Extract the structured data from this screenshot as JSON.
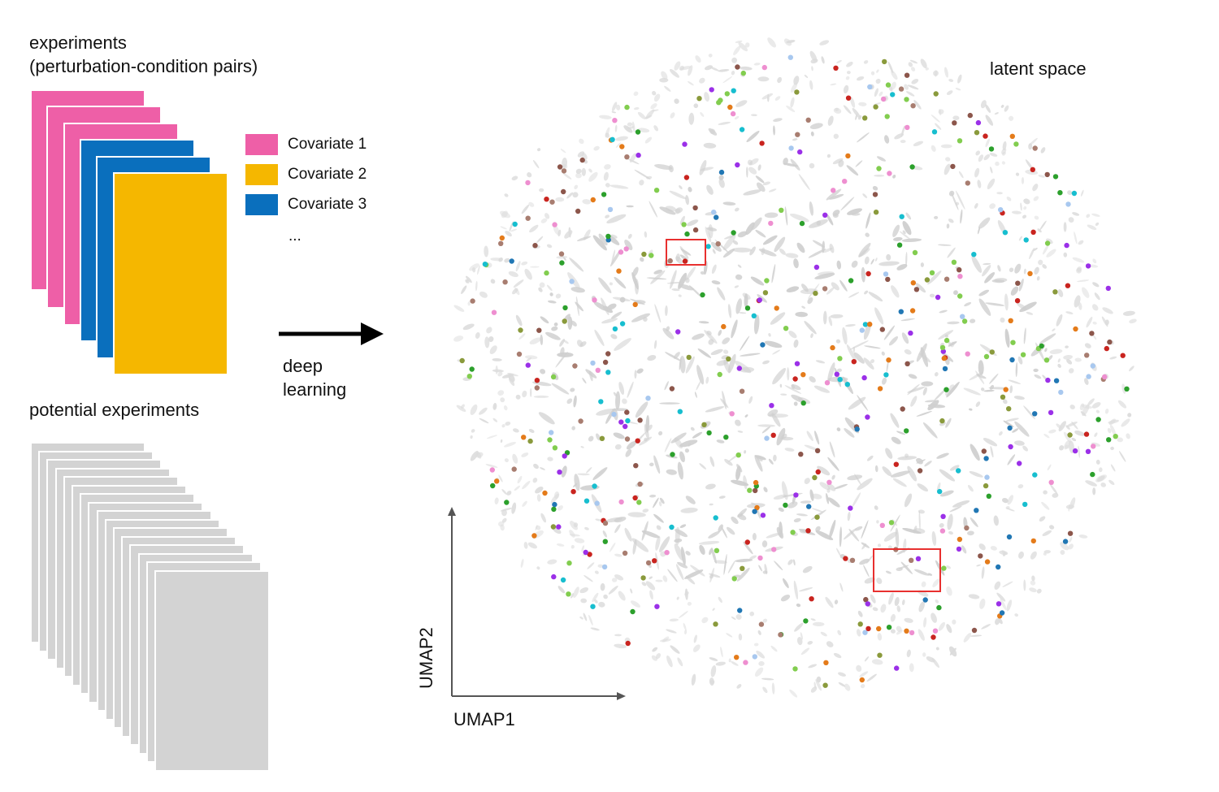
{
  "experiments": {
    "title_line1": "experiments",
    "title_line2": "(perturbation-condition pairs)",
    "card_colors": [
      "#ee5fa7",
      "#ee5fa7",
      "#ee5fa7",
      "#0a6fbd",
      "#0a6fbd",
      "#f5b700"
    ]
  },
  "legend": {
    "items": [
      {
        "label": "Covariate 1",
        "color": "#ee5fa7"
      },
      {
        "label": "Covariate 2",
        "color": "#f5b700"
      },
      {
        "label": "Covariate 3",
        "color": "#0a6fbd"
      }
    ],
    "more": "..."
  },
  "arrow": {
    "line1": "deep",
    "line2": "learning"
  },
  "potential": {
    "title": "potential experiments",
    "card_color": "#d3d3d3",
    "count": 16
  },
  "latent": {
    "title": "latent space",
    "xlabel": "UMAP1",
    "ylabel": "UMAP2",
    "highlight_color": "#e8302f",
    "point_colors": [
      "#9b30e8",
      "#e47b1a",
      "#2177b4",
      "#ee8fd0",
      "#a87d70",
      "#82cd4f",
      "#8c564b",
      "#a8c8ef",
      "#c9241f",
      "#2ca02c",
      "#17becf",
      "#8a9a3c"
    ]
  }
}
